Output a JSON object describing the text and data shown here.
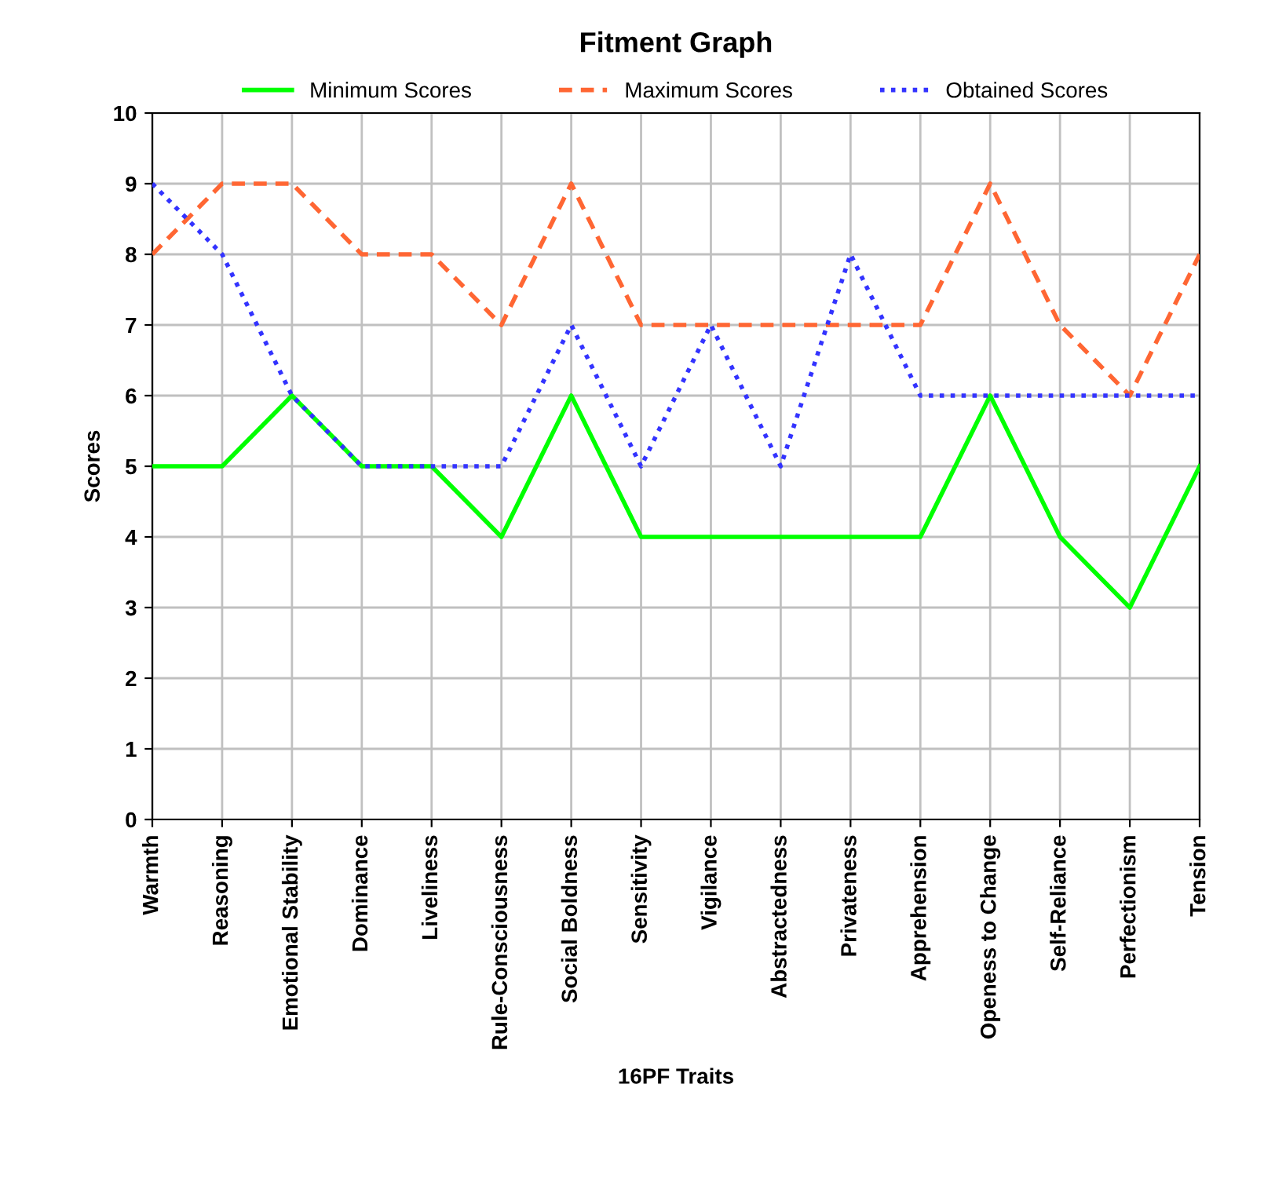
{
  "chart_data": {
    "type": "line",
    "title": "Fitment Graph",
    "xlabel": "16PF Traits",
    "ylabel": "Scores",
    "categories": [
      "Warmth",
      "Reasoning",
      "Emotional Stability",
      "Dominance",
      "Liveliness",
      "Rule-Consciousness",
      "Social Boldness",
      "Sensitivity",
      "Vigilance",
      "Abstractedness",
      "Privateness",
      "Apprehension",
      "Openess to Change",
      "Self-Reliance",
      "Perfectionism",
      "Tension"
    ],
    "series": [
      {
        "name": "Minimum Scores",
        "color": "#00ff00",
        "line_style": "solid",
        "values": [
          5,
          5,
          6,
          5,
          5,
          4,
          6,
          4,
          4,
          4,
          4,
          4,
          6,
          4,
          3,
          5
        ]
      },
      {
        "name": "Maximum Scores",
        "color": "#ff6633",
        "line_style": "dashed",
        "values": [
          8,
          9,
          9,
          8,
          8,
          7,
          9,
          7,
          7,
          7,
          7,
          7,
          9,
          7,
          6,
          8
        ]
      },
      {
        "name": "Obtained Scores",
        "color": "#3333ff",
        "line_style": "dotted",
        "values": [
          9,
          8,
          6,
          5,
          5,
          5,
          7,
          5,
          7,
          5,
          8,
          6,
          6,
          6,
          6,
          6
        ]
      }
    ],
    "ylim": [
      0,
      10
    ],
    "yticks": [
      0,
      1,
      2,
      3,
      4,
      5,
      6,
      7,
      8,
      9,
      10
    ],
    "grid": true,
    "legend": "top",
    "marker": "none"
  }
}
